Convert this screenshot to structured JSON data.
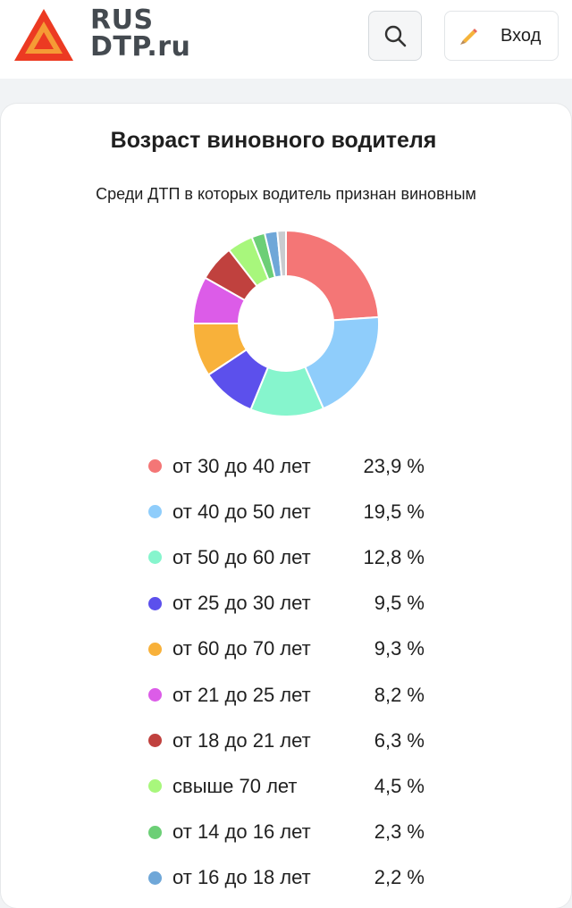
{
  "header": {
    "brand_line1": "RUS",
    "brand_line2": "DTP.ru",
    "logo_icon": "warning-triangle-icon",
    "search_icon": "search-icon",
    "login_icon": "pencil-icon",
    "login_label": "Вход"
  },
  "card": {
    "title": "Возраст виновного водителя",
    "subtitle": "Среди ДТП в которых водитель признан виновным"
  },
  "chart_data": {
    "type": "pie",
    "donut": true,
    "title": "Возраст виновного водителя",
    "subtitle": "Среди ДТП в которых водитель признан виновным",
    "legend_placement": "bottom",
    "slices": [
      {
        "label": "от 30 до 40 лет",
        "value": 23.9,
        "display": "23,9 %",
        "color": "#f47676"
      },
      {
        "label": "от 40 до 50 лет",
        "value": 19.5,
        "display": "19,5 %",
        "color": "#8fcdfb"
      },
      {
        "label": "от 50 до 60 лет",
        "value": 12.8,
        "display": "12,8 %",
        "color": "#86f5cd"
      },
      {
        "label": "от 25 до 30 лет",
        "value": 9.5,
        "display": "9,5 %",
        "color": "#5c50ec"
      },
      {
        "label": "от 60 до 70 лет",
        "value": 9.3,
        "display": "9,3 %",
        "color": "#f8b13a"
      },
      {
        "label": "от 21 до 25 лет",
        "value": 8.2,
        "display": "8,2 %",
        "color": "#dc5ce8"
      },
      {
        "label": "от 18 до 21 лет",
        "value": 6.3,
        "display": "6,3 %",
        "color": "#c0413e"
      },
      {
        "label": "свыше 70 лет",
        "value": 4.5,
        "display": "4,5 %",
        "color": "#a8f77c"
      },
      {
        "label": "от 14 до 16 лет",
        "value": 2.3,
        "display": "2,3 %",
        "color": "#6ccf76"
      },
      {
        "label": "от 16 до 18 лет",
        "value": 2.2,
        "display": "2,2 %",
        "color": "#6fa7d8"
      },
      {
        "label": "",
        "value": 1.5,
        "display": "",
        "color": "#c9ccd0"
      }
    ]
  }
}
